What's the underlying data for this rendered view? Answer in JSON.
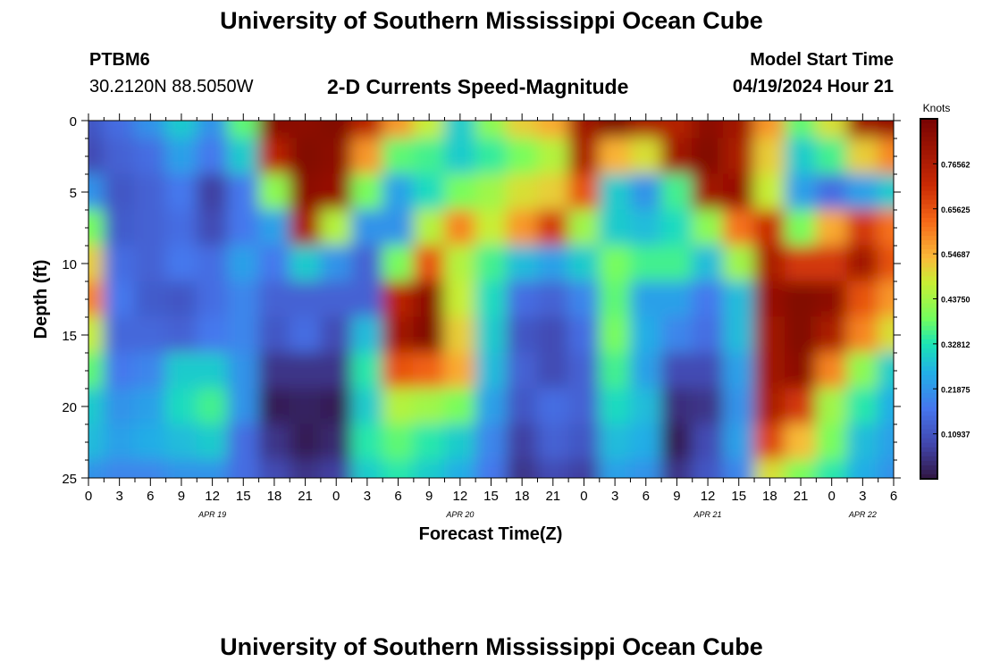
{
  "header": {
    "title": "University of Southern Mississippi Ocean Cube",
    "station_id": "PTBM6",
    "coordinates": "30.2120N  88.5050W",
    "subtitle": "2-D Currents Speed-Magnitude",
    "model_start_label": "Model Start Time",
    "model_start_value": "04/19/2024 Hour 21"
  },
  "footer": {
    "title": "University of Southern Mississippi Ocean Cube"
  },
  "chart_data": {
    "type": "heatmap",
    "title": "2-D Currents Speed-Magnitude",
    "xlabel": "Forecast Time(Z)",
    "ylabel": "Depth (ft)",
    "x_tick_labels": [
      "0",
      "3",
      "6",
      "9",
      "12",
      "15",
      "18",
      "21",
      "0",
      "3",
      "6",
      "9",
      "12",
      "15",
      "18",
      "21",
      "0",
      "3",
      "6",
      "9",
      "12",
      "15",
      "18",
      "21",
      "0",
      "3",
      "6"
    ],
    "date_labels": [
      {
        "label": "APR 19",
        "tick_index": 4
      },
      {
        "label": "APR 20",
        "tick_index": 12
      },
      {
        "label": "APR 21",
        "tick_index": 20
      },
      {
        "label": "APR 22",
        "tick_index": 25
      }
    ],
    "x_range_hours": [
      0,
      78
    ],
    "y_ticks": [
      0,
      5,
      10,
      15,
      20,
      25
    ],
    "ylim": [
      0,
      25
    ],
    "colorbar": {
      "label": "Knots",
      "range": [
        0,
        0.875
      ],
      "tick_labels": [
        "0.76562",
        "0.65625",
        "0.54687",
        "0.43750",
        "0.32812",
        "0.21875",
        "0.10937"
      ],
      "tick_values": [
        0.765625,
        0.65625,
        0.546875,
        0.4375,
        0.328125,
        0.21875,
        0.109375
      ]
    },
    "grid_hours": [
      0,
      3,
      6,
      9,
      12,
      15,
      18,
      21,
      24,
      27,
      30,
      33,
      36,
      39,
      42,
      45,
      48,
      51,
      54,
      57,
      60,
      63,
      66,
      69,
      72,
      75,
      78
    ],
    "grid_depths": [
      0,
      2.5,
      5,
      7.5,
      10,
      12.5,
      15,
      17.5,
      20,
      22.5,
      25
    ],
    "speed_knots": [
      [
        0.12,
        0.16,
        0.22,
        0.3,
        0.22,
        0.38,
        0.85,
        0.84,
        0.86,
        0.75,
        0.58,
        0.48,
        0.3,
        0.42,
        0.52,
        0.56,
        0.8,
        0.86,
        0.78,
        0.76,
        0.84,
        0.8,
        0.58,
        0.38,
        0.5,
        0.8,
        0.82
      ],
      [
        0.1,
        0.14,
        0.16,
        0.24,
        0.18,
        0.3,
        0.75,
        0.86,
        0.84,
        0.58,
        0.38,
        0.36,
        0.3,
        0.35,
        0.4,
        0.46,
        0.78,
        0.55,
        0.5,
        0.8,
        0.86,
        0.78,
        0.52,
        0.3,
        0.36,
        0.52,
        0.6
      ],
      [
        0.22,
        0.12,
        0.14,
        0.18,
        0.08,
        0.18,
        0.42,
        0.84,
        0.82,
        0.4,
        0.24,
        0.32,
        0.4,
        0.44,
        0.5,
        0.52,
        0.66,
        0.3,
        0.22,
        0.36,
        0.8,
        0.82,
        0.48,
        0.24,
        0.16,
        0.24,
        0.3
      ],
      [
        0.4,
        0.13,
        0.14,
        0.16,
        0.1,
        0.18,
        0.24,
        0.78,
        0.46,
        0.22,
        0.22,
        0.46,
        0.6,
        0.48,
        0.58,
        0.7,
        0.44,
        0.3,
        0.28,
        0.32,
        0.42,
        0.62,
        0.72,
        0.4,
        0.56,
        0.7,
        0.62
      ],
      [
        0.52,
        0.16,
        0.14,
        0.18,
        0.16,
        0.24,
        0.18,
        0.3,
        0.22,
        0.14,
        0.4,
        0.66,
        0.46,
        0.36,
        0.28,
        0.24,
        0.3,
        0.4,
        0.36,
        0.36,
        0.28,
        0.44,
        0.78,
        0.7,
        0.7,
        0.8,
        0.66
      ],
      [
        0.6,
        0.18,
        0.13,
        0.12,
        0.16,
        0.2,
        0.14,
        0.14,
        0.14,
        0.14,
        0.75,
        0.84,
        0.48,
        0.32,
        0.16,
        0.14,
        0.2,
        0.38,
        0.24,
        0.24,
        0.18,
        0.28,
        0.82,
        0.86,
        0.84,
        0.66,
        0.58
      ],
      [
        0.48,
        0.15,
        0.15,
        0.14,
        0.18,
        0.2,
        0.12,
        0.16,
        0.1,
        0.28,
        0.8,
        0.86,
        0.52,
        0.3,
        0.12,
        0.1,
        0.16,
        0.4,
        0.26,
        0.2,
        0.16,
        0.28,
        0.8,
        0.86,
        0.78,
        0.6,
        0.5
      ],
      [
        0.38,
        0.18,
        0.2,
        0.3,
        0.3,
        0.22,
        0.06,
        0.06,
        0.06,
        0.34,
        0.66,
        0.64,
        0.56,
        0.28,
        0.14,
        0.1,
        0.14,
        0.36,
        0.24,
        0.1,
        0.1,
        0.24,
        0.8,
        0.84,
        0.6,
        0.42,
        0.3
      ],
      [
        0.3,
        0.22,
        0.24,
        0.32,
        0.36,
        0.22,
        0.02,
        0.03,
        0.02,
        0.3,
        0.46,
        0.44,
        0.4,
        0.24,
        0.12,
        0.16,
        0.14,
        0.32,
        0.28,
        0.05,
        0.06,
        0.22,
        0.78,
        0.7,
        0.44,
        0.34,
        0.26
      ],
      [
        0.28,
        0.24,
        0.26,
        0.28,
        0.3,
        0.16,
        0.06,
        0.02,
        0.04,
        0.34,
        0.38,
        0.34,
        0.3,
        0.2,
        0.08,
        0.14,
        0.12,
        0.28,
        0.26,
        0.02,
        0.1,
        0.24,
        0.68,
        0.54,
        0.4,
        0.28,
        0.24
      ],
      [
        0.22,
        0.2,
        0.2,
        0.22,
        0.22,
        0.16,
        0.1,
        0.06,
        0.08,
        0.3,
        0.34,
        0.3,
        0.26,
        0.18,
        0.06,
        0.1,
        0.08,
        0.24,
        0.22,
        0.06,
        0.12,
        0.2,
        0.5,
        0.4,
        0.34,
        0.26,
        0.22
      ]
    ]
  }
}
